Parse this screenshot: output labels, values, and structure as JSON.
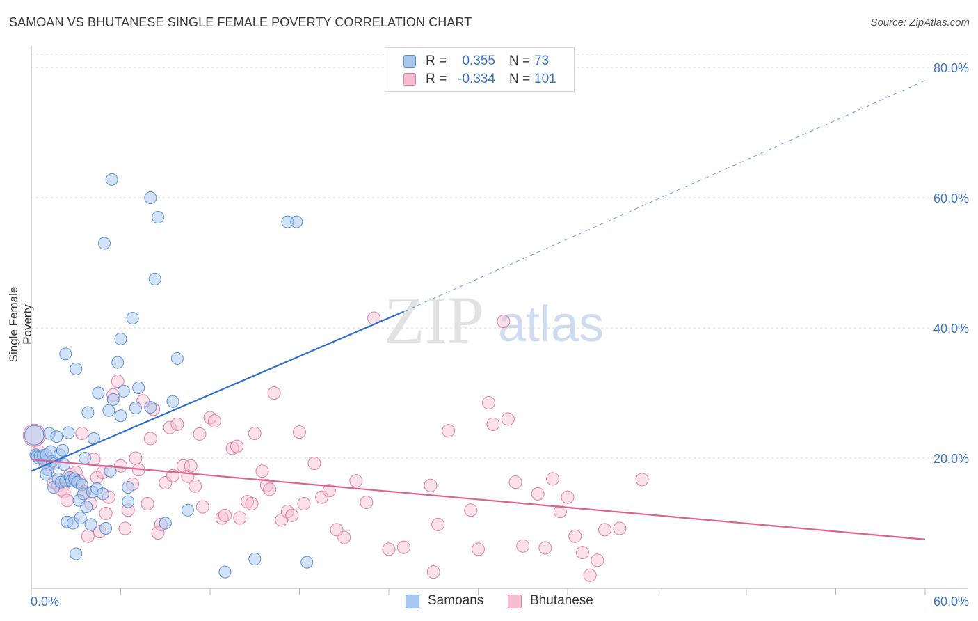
{
  "title": "SAMOAN VS BHUTANESE SINGLE FEMALE POVERTY CORRELATION CHART",
  "source": "Source: ZipAtlas.com",
  "watermark": {
    "zip": "ZIP",
    "atlas": "atlas"
  },
  "colors": {
    "samoans_fill": "#a8c8f0",
    "samoans_stroke": "#5b8fd6",
    "samoans_line": "#2a6fd0",
    "bhutanese_fill": "#f6bcd0",
    "bhutanese_stroke": "#e07fa3",
    "bhutanese_line": "#e0608e",
    "axis_text": "#3b74c9",
    "grid": "#d9d9d9"
  },
  "stats_legend": {
    "rows": [
      {
        "r_label": "R =",
        "r_value": "0.355",
        "n_label": "N =",
        "n_value": "73"
      },
      {
        "r_label": "R =",
        "r_value": "-0.334",
        "n_label": "N =",
        "n_value": "101"
      }
    ]
  },
  "chart_data": {
    "type": "scatter",
    "title": "SAMOAN VS BHUTANESE SINGLE FEMALE POVERTY CORRELATION CHART",
    "xlabel": "",
    "ylabel": "Single Female Poverty",
    "xlim": [
      0,
      60
    ],
    "ylim": [
      0,
      80
    ],
    "x_tick_labels": [
      "0.0%",
      "60.0%"
    ],
    "y_ticks": [
      20,
      40,
      60,
      80
    ],
    "y_tick_labels": [
      "20.0%",
      "40.0%",
      "60.0%",
      "80.0%"
    ],
    "grid": true,
    "legend_position": "bottom",
    "series": [
      {
        "name": "Samoans",
        "r": 0.355,
        "n": 73,
        "trend": {
          "x0": 0,
          "y0": 18.0,
          "x1": 25,
          "y1": 42.5,
          "dash_to_x": 60,
          "dash_to_y": 78.0
        },
        "points": [
          [
            0.2,
            23.5
          ],
          [
            0.3,
            20.5
          ],
          [
            0.4,
            20.3
          ],
          [
            0.5,
            20.0
          ],
          [
            0.6,
            20.3
          ],
          [
            0.8,
            20.4
          ],
          [
            0.9,
            19.3
          ],
          [
            1.0,
            20.5
          ],
          [
            1.1,
            18.2
          ],
          [
            1.2,
            23.8
          ],
          [
            1.3,
            21.0
          ],
          [
            1.4,
            19.5
          ],
          [
            1.5,
            15.5
          ],
          [
            1.6,
            19.2
          ],
          [
            1.7,
            23.3
          ],
          [
            1.8,
            16.8
          ],
          [
            1.9,
            20.5
          ],
          [
            2.0,
            16.3
          ],
          [
            2.1,
            21.2
          ],
          [
            2.2,
            19.0
          ],
          [
            2.3,
            16.5
          ],
          [
            2.4,
            10.2
          ],
          [
            2.5,
            23.9
          ],
          [
            2.6,
            17.0
          ],
          [
            2.7,
            16.5
          ],
          [
            2.8,
            10.0
          ],
          [
            2.9,
            16.8
          ],
          [
            3.0,
            5.3
          ],
          [
            3.1,
            16.3
          ],
          [
            3.2,
            13.5
          ],
          [
            3.3,
            10.8
          ],
          [
            3.4,
            15.9
          ],
          [
            3.5,
            14.5
          ],
          [
            3.6,
            20.0
          ],
          [
            3.7,
            12.5
          ],
          [
            3.8,
            27.0
          ],
          [
            4.0,
            9.8
          ],
          [
            4.1,
            14.8
          ],
          [
            4.2,
            23.0
          ],
          [
            4.4,
            15.3
          ],
          [
            4.5,
            30.0
          ],
          [
            4.8,
            14.5
          ],
          [
            5.0,
            9.2
          ],
          [
            5.2,
            27.3
          ],
          [
            5.3,
            18.0
          ],
          [
            5.4,
            62.8
          ],
          [
            5.5,
            29.0
          ],
          [
            5.8,
            34.7
          ],
          [
            6.0,
            38.3
          ],
          [
            6.2,
            30.3
          ],
          [
            6.5,
            15.5
          ],
          [
            6.5,
            13.3
          ],
          [
            6.8,
            41.5
          ],
          [
            7.2,
            30.8
          ],
          [
            8.0,
            60.0
          ],
          [
            8.3,
            47.5
          ],
          [
            8.5,
            57.0
          ],
          [
            9.0,
            10.0
          ],
          [
            9.5,
            28.7
          ],
          [
            9.8,
            35.3
          ],
          [
            10.5,
            12.0
          ],
          [
            13.0,
            2.5
          ],
          [
            15.0,
            4.5
          ],
          [
            17.2,
            56.3
          ],
          [
            17.8,
            56.3
          ],
          [
            18.5,
            4.0
          ],
          [
            6.0,
            26.5
          ],
          [
            4.9,
            53.0
          ],
          [
            3.0,
            33.7
          ],
          [
            2.3,
            36.0
          ],
          [
            1.0,
            17.5
          ],
          [
            7.0,
            27.7
          ],
          [
            8.0,
            27.8
          ]
        ]
      },
      {
        "name": "Bhutanese",
        "r": -0.334,
        "n": 101,
        "trend": {
          "x0": 0,
          "y0": 19.8,
          "x1": 60,
          "y1": 7.5
        },
        "points": [
          [
            0.2,
            23.5
          ],
          [
            0.5,
            21.0
          ],
          [
            0.8,
            20.0
          ],
          [
            1.0,
            19.5
          ],
          [
            1.2,
            19.0
          ],
          [
            1.5,
            16.3
          ],
          [
            1.8,
            15.8
          ],
          [
            2.0,
            15.2
          ],
          [
            2.2,
            14.8
          ],
          [
            2.4,
            13.5
          ],
          [
            2.6,
            17.5
          ],
          [
            2.8,
            16.8
          ],
          [
            3.0,
            17.8
          ],
          [
            3.2,
            16.5
          ],
          [
            3.4,
            23.8
          ],
          [
            3.6,
            14.8
          ],
          [
            3.8,
            8.0
          ],
          [
            4.0,
            13.0
          ],
          [
            4.2,
            19.8
          ],
          [
            4.4,
            17.0
          ],
          [
            4.6,
            8.7
          ],
          [
            4.8,
            17.8
          ],
          [
            5.0,
            11.5
          ],
          [
            5.2,
            14.0
          ],
          [
            5.5,
            29.7
          ],
          [
            5.8,
            31.8
          ],
          [
            6.0,
            18.8
          ],
          [
            6.3,
            9.2
          ],
          [
            6.5,
            12.0
          ],
          [
            6.8,
            16.0
          ],
          [
            7.0,
            20.0
          ],
          [
            7.2,
            18.2
          ],
          [
            7.5,
            28.8
          ],
          [
            7.8,
            13.0
          ],
          [
            8.0,
            23.0
          ],
          [
            8.2,
            27.5
          ],
          [
            8.5,
            8.5
          ],
          [
            8.7,
            9.8
          ],
          [
            9.0,
            16.2
          ],
          [
            9.3,
            24.7
          ],
          [
            9.5,
            17.3
          ],
          [
            9.8,
            25.2
          ],
          [
            10.2,
            18.8
          ],
          [
            10.5,
            17.2
          ],
          [
            10.7,
            18.8
          ],
          [
            11.0,
            15.7
          ],
          [
            11.3,
            23.7
          ],
          [
            11.5,
            12.5
          ],
          [
            12.0,
            26.2
          ],
          [
            12.3,
            25.7
          ],
          [
            12.8,
            10.8
          ],
          [
            13.0,
            11.2
          ],
          [
            13.5,
            21.5
          ],
          [
            13.8,
            21.8
          ],
          [
            14.0,
            10.8
          ],
          [
            14.5,
            13.3
          ],
          [
            14.8,
            13.0
          ],
          [
            15.0,
            23.8
          ],
          [
            15.5,
            18.0
          ],
          [
            15.8,
            15.8
          ],
          [
            16.0,
            15.2
          ],
          [
            16.3,
            30.0
          ],
          [
            16.8,
            10.5
          ],
          [
            17.2,
            11.8
          ],
          [
            17.5,
            11.2
          ],
          [
            18.0,
            24.0
          ],
          [
            18.3,
            13.0
          ],
          [
            19.0,
            19.2
          ],
          [
            19.5,
            14.0
          ],
          [
            20.0,
            15.0
          ],
          [
            20.5,
            9.0
          ],
          [
            21.0,
            7.8
          ],
          [
            21.8,
            16.5
          ],
          [
            22.5,
            13.2
          ],
          [
            23.0,
            41.5
          ],
          [
            24.0,
            6.0
          ],
          [
            25.0,
            6.3
          ],
          [
            27.0,
            2.5
          ],
          [
            26.8,
            15.8
          ],
          [
            27.3,
            9.8
          ],
          [
            28.0,
            24.2
          ],
          [
            29.5,
            12.0
          ],
          [
            30.0,
            6.0
          ],
          [
            30.7,
            28.5
          ],
          [
            31.0,
            25.2
          ],
          [
            32.0,
            26.0
          ],
          [
            31.7,
            41.0
          ],
          [
            32.5,
            16.3
          ],
          [
            33.0,
            6.5
          ],
          [
            34.0,
            14.5
          ],
          [
            34.5,
            6.2
          ],
          [
            35.0,
            16.8
          ],
          [
            35.5,
            11.8
          ],
          [
            36.0,
            14.0
          ],
          [
            36.5,
            8.0
          ],
          [
            37.0,
            5.5
          ],
          [
            37.5,
            2.0
          ],
          [
            38.0,
            4.3
          ],
          [
            38.5,
            9.0
          ],
          [
            39.5,
            9.2
          ],
          [
            41.0,
            16.7
          ]
        ]
      }
    ]
  },
  "bottom_legend": {
    "items": [
      {
        "label": "Samoans"
      },
      {
        "label": "Bhutanese"
      }
    ]
  }
}
